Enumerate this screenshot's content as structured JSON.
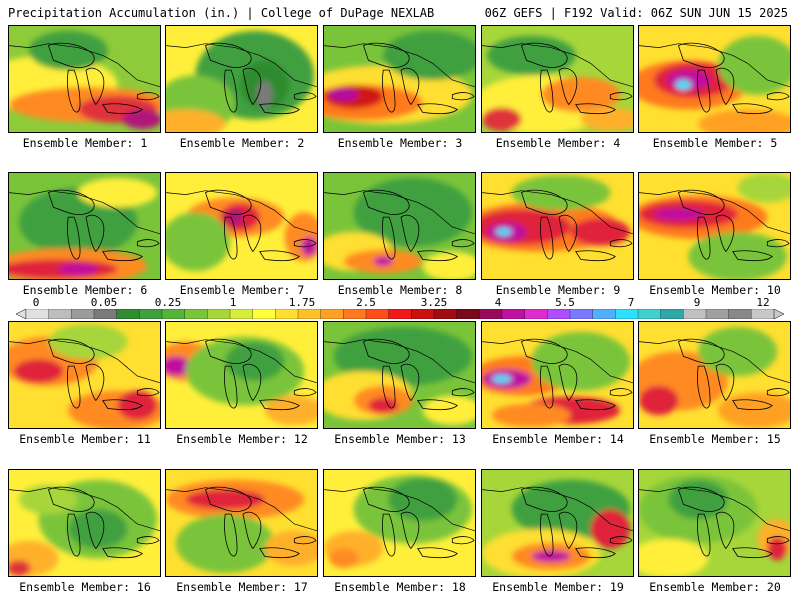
{
  "header": {
    "left": "Precipitation Accumulation (in.) | College of DuPage NEXLAB",
    "right": "06Z GEFS | F192 Valid: 06Z SUN JUN 15 2025"
  },
  "colors": {
    "scale": [
      "#e0e0e0",
      "#bdbdbd",
      "#9b9b9b",
      "#7a7a7a",
      "#2f8c2f",
      "#3fa03f",
      "#55b33a",
      "#7ac43a",
      "#a6d63a",
      "#d8ec3a",
      "#ffff3a",
      "#ffdf30",
      "#ffc12a",
      "#ffa024",
      "#ff7a1e",
      "#ff4c18",
      "#f01818",
      "#cc1010",
      "#a00c10",
      "#7a0a1a",
      "#9a0a5a",
      "#c010a0",
      "#e02ad0",
      "#b04cff",
      "#7a7aff",
      "#50b0ff",
      "#2ee0ff",
      "#40d0d0",
      "#30a8a8",
      "#c0c0c0",
      "#a0a0a0",
      "#888888",
      "#c8c8c8"
    ]
  },
  "legend": {
    "ticks": [
      "0",
      "0.05",
      "0.25",
      "1",
      "1.75",
      "2.5",
      "3.25",
      "4",
      "5.5",
      "7",
      "9",
      "12"
    ]
  },
  "members": [
    {
      "label": "Ensemble Member: 1",
      "base": "#8ecb3a",
      "blobs": [
        [
          "#ffef3a",
          40,
          60,
          70,
          30
        ],
        [
          "#ff8a20",
          80,
          80,
          80,
          18
        ],
        [
          "#e0303a",
          110,
          85,
          40,
          14
        ],
        [
          "#3fa03f",
          60,
          25,
          40,
          20
        ],
        [
          "#b0147a",
          135,
          95,
          20,
          10
        ]
      ]
    },
    {
      "label": "Ensemble Member: 2",
      "base": "#ffef3a",
      "blobs": [
        [
          "#3fa03f",
          90,
          50,
          60,
          45
        ],
        [
          "#7ac43a",
          30,
          80,
          40,
          30
        ],
        [
          "#ffb02a",
          20,
          100,
          40,
          15
        ],
        [
          "#2f8c2f",
          100,
          60,
          25,
          25
        ],
        [
          "#7a7a7a",
          100,
          70,
          8,
          14
        ]
      ]
    },
    {
      "label": "Ensemble Member: 3",
      "base": "#7ac43a",
      "blobs": [
        [
          "#ffdf30",
          60,
          70,
          90,
          30
        ],
        [
          "#ff7a1e",
          40,
          78,
          60,
          18
        ],
        [
          "#d01414",
          30,
          72,
          30,
          12
        ],
        [
          "#b010a0",
          20,
          70,
          15,
          6
        ],
        [
          "#3fa03f",
          110,
          30,
          50,
          25
        ]
      ]
    },
    {
      "label": "Ensemble Member: 4",
      "base": "#a6d63a",
      "blobs": [
        [
          "#ffef3a",
          60,
          80,
          70,
          30
        ],
        [
          "#ff8a20",
          100,
          70,
          40,
          18
        ],
        [
          "#3fa03f",
          50,
          30,
          45,
          20
        ],
        [
          "#e0303a",
          20,
          95,
          20,
          12
        ],
        [
          "#ffb02a",
          130,
          95,
          30,
          12
        ]
      ]
    },
    {
      "label": "Ensemble Member: 5",
      "base": "#ffdf30",
      "blobs": [
        [
          "#ff7a1e",
          50,
          60,
          60,
          25
        ],
        [
          "#e0203a",
          55,
          55,
          40,
          18
        ],
        [
          "#c010a0",
          50,
          55,
          22,
          10
        ],
        [
          "#2ee0ff",
          45,
          60,
          8,
          5
        ],
        [
          "#7ac43a",
          120,
          40,
          40,
          30
        ],
        [
          "#ffa024",
          110,
          100,
          50,
          15
        ]
      ]
    },
    {
      "label": "Ensemble Member: 6",
      "base": "#7ac43a",
      "blobs": [
        [
          "#3fa03f",
          70,
          50,
          60,
          35
        ],
        [
          "#ff8a20",
          60,
          95,
          80,
          18
        ],
        [
          "#e0203a",
          50,
          98,
          60,
          10
        ],
        [
          "#c010a0",
          70,
          98,
          20,
          6
        ],
        [
          "#ffef3a",
          110,
          20,
          40,
          15
        ]
      ]
    },
    {
      "label": "Ensemble Member: 7",
      "base": "#ffef3a",
      "blobs": [
        [
          "#ff8a20",
          70,
          45,
          50,
          20
        ],
        [
          "#e0203a",
          75,
          45,
          20,
          14
        ],
        [
          "#b0147a",
          70,
          45,
          8,
          8
        ],
        [
          "#7ac43a",
          30,
          70,
          35,
          30
        ],
        [
          "#ff8a20",
          140,
          65,
          20,
          25
        ],
        [
          "#c010a0",
          145,
          75,
          8,
          10
        ]
      ]
    },
    {
      "label": "Ensemble Member: 8",
      "base": "#7ac43a",
      "blobs": [
        [
          "#3fa03f",
          90,
          40,
          60,
          35
        ],
        [
          "#ffdf30",
          30,
          80,
          40,
          20
        ],
        [
          "#ff8a20",
          60,
          90,
          40,
          12
        ],
        [
          "#c010a0",
          60,
          90,
          10,
          5
        ],
        [
          "#ffef3a",
          130,
          95,
          30,
          15
        ]
      ]
    },
    {
      "label": "Ensemble Member: 9",
      "base": "#ffdf30",
      "blobs": [
        [
          "#ff7a1e",
          60,
          55,
          80,
          25
        ],
        [
          "#e0203a",
          40,
          55,
          50,
          18
        ],
        [
          "#c010a0",
          25,
          60,
          20,
          10
        ],
        [
          "#2ee0ff",
          22,
          60,
          8,
          4
        ],
        [
          "#e0203a",
          120,
          60,
          30,
          14
        ],
        [
          "#7ac43a",
          80,
          20,
          50,
          18
        ]
      ]
    },
    {
      "label": "Ensemble Member: 10",
      "base": "#ffdf30",
      "blobs": [
        [
          "#ff7a1e",
          60,
          45,
          70,
          22
        ],
        [
          "#e0203a",
          50,
          42,
          50,
          14
        ],
        [
          "#c010a0",
          40,
          42,
          25,
          6
        ],
        [
          "#7ac43a",
          100,
          85,
          50,
          25
        ],
        [
          "#a6d63a",
          130,
          15,
          30,
          15
        ]
      ]
    },
    {
      "label": "Ensemble Member: 11",
      "base": "#ffdf30",
      "blobs": [
        [
          "#ff8a20",
          40,
          40,
          50,
          25
        ],
        [
          "#e0203a",
          30,
          50,
          25,
          12
        ],
        [
          "#ff8a20",
          110,
          90,
          50,
          20
        ],
        [
          "#e0203a",
          130,
          85,
          20,
          15
        ],
        [
          "#a6d63a",
          80,
          20,
          40,
          18
        ]
      ]
    },
    {
      "label": "Ensemble Member: 12",
      "base": "#ffef3a",
      "blobs": [
        [
          "#ff8a20",
          20,
          40,
          30,
          20
        ],
        [
          "#c010a0",
          10,
          45,
          15,
          10
        ],
        [
          "#7ac43a",
          80,
          50,
          60,
          35
        ],
        [
          "#3fa03f",
          90,
          40,
          30,
          20
        ],
        [
          "#ffb02a",
          130,
          90,
          30,
          15
        ]
      ]
    },
    {
      "label": "Ensemble Member: 13",
      "base": "#7ac43a",
      "blobs": [
        [
          "#3fa03f",
          80,
          35,
          70,
          30
        ],
        [
          "#ffdf30",
          40,
          75,
          50,
          25
        ],
        [
          "#ff8a20",
          60,
          80,
          30,
          15
        ],
        [
          "#e0203a",
          60,
          85,
          15,
          8
        ],
        [
          "#ffef3a",
          130,
          90,
          30,
          15
        ]
      ]
    },
    {
      "label": "Ensemble Member: 14",
      "base": "#ffdf30",
      "blobs": [
        [
          "#ff7a1e",
          40,
          55,
          50,
          20
        ],
        [
          "#c010a0",
          25,
          58,
          25,
          10
        ],
        [
          "#2ee0ff",
          20,
          58,
          10,
          4
        ],
        [
          "#7ac43a",
          100,
          40,
          50,
          30
        ],
        [
          "#e0203a",
          90,
          90,
          50,
          14
        ],
        [
          "#ff8a20",
          50,
          95,
          40,
          12
        ]
      ]
    },
    {
      "label": "Ensemble Member: 15",
      "base": "#ffdf30",
      "blobs": [
        [
          "#ff8a20",
          40,
          60,
          50,
          30
        ],
        [
          "#e0203a",
          20,
          80,
          20,
          15
        ],
        [
          "#7ac43a",
          100,
          30,
          40,
          25
        ],
        [
          "#ffa024",
          120,
          90,
          40,
          18
        ]
      ]
    },
    {
      "label": "Ensemble Member: 16",
      "base": "#ffef3a",
      "blobs": [
        [
          "#7ac43a",
          90,
          50,
          60,
          40
        ],
        [
          "#3fa03f",
          90,
          60,
          30,
          20
        ],
        [
          "#ffb02a",
          20,
          90,
          30,
          18
        ],
        [
          "#e0303a",
          10,
          100,
          12,
          8
        ],
        [
          "#a6d63a",
          40,
          30,
          30,
          15
        ]
      ]
    },
    {
      "label": "Ensemble Member: 17",
      "base": "#ffdf30",
      "blobs": [
        [
          "#ff8a20",
          70,
          30,
          70,
          20
        ],
        [
          "#e0203a",
          60,
          30,
          40,
          10
        ],
        [
          "#7ac43a",
          60,
          75,
          50,
          30
        ],
        [
          "#ffb02a",
          130,
          80,
          30,
          18
        ]
      ]
    },
    {
      "label": "Ensemble Member: 18",
      "base": "#ffef3a",
      "blobs": [
        [
          "#7ac43a",
          90,
          40,
          60,
          35
        ],
        [
          "#3fa03f",
          100,
          30,
          35,
          22
        ],
        [
          "#ffb02a",
          30,
          80,
          30,
          18
        ],
        [
          "#ff8a20",
          20,
          90,
          15,
          10
        ]
      ]
    },
    {
      "label": "Ensemble Member: 19",
      "base": "#a6d63a",
      "blobs": [
        [
          "#3fa03f",
          90,
          40,
          60,
          30
        ],
        [
          "#ffdf30",
          60,
          85,
          60,
          25
        ],
        [
          "#ff8a20",
          70,
          88,
          40,
          14
        ],
        [
          "#c010a0",
          70,
          88,
          20,
          6
        ],
        [
          "#e0203a",
          130,
          60,
          20,
          20
        ]
      ]
    },
    {
      "label": "Ensemble Member: 20",
      "base": "#a6d63a",
      "blobs": [
        [
          "#7ac43a",
          60,
          40,
          60,
          35
        ],
        [
          "#3fa03f",
          60,
          30,
          30,
          20
        ],
        [
          "#ffef3a",
          30,
          90,
          40,
          20
        ],
        [
          "#ffb02a",
          140,
          70,
          20,
          20
        ],
        [
          "#e0203a",
          140,
          80,
          10,
          12
        ]
      ]
    }
  ]
}
